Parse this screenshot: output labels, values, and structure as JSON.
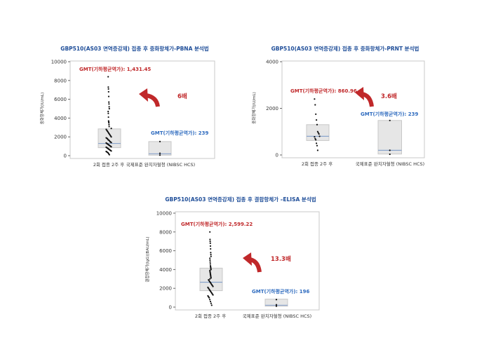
{
  "colors": {
    "title": "#1f4e99",
    "gmt_red": "#c0282a",
    "gmt_blue": "#2e6bbf",
    "box_fill": "#e6e6e6",
    "box_stroke": "#c8c8c8",
    "median": "#8aa4cc",
    "arrow": "#c0282a"
  },
  "chart_data": [
    {
      "type": "box",
      "title": "GBP510(AS03 면역증강제) 접종 후 중화항체가-PBNA 분석법",
      "ylabel": "중화항체가(IU/mL)",
      "ylim": [
        0,
        10000
      ],
      "yticks": [
        0,
        2000,
        4000,
        6000,
        8000,
        10000
      ],
      "categories": [
        "2회 접종 2주 후",
        "국제표준 완치자혈청 (NIBSC HCS)"
      ],
      "boxes": [
        {
          "q1": 850,
          "median": 1300,
          "q3": 2850,
          "points": [
            8400,
            7300,
            7100,
            6800,
            6300,
            5700,
            5500,
            5200,
            5000,
            4700,
            4500,
            4100,
            3700,
            3600,
            3500,
            3300,
            3100,
            2900,
            2800,
            2700,
            2600,
            2500,
            2400,
            2300,
            2200,
            2100,
            2000,
            1900,
            1850,
            1800,
            1700,
            1650,
            1600,
            1500,
            1450,
            1400,
            1350,
            1300,
            1250,
            1200,
            1150,
            1100,
            1050,
            1000,
            950,
            900,
            850,
            800,
            750,
            700,
            650,
            600,
            550,
            500,
            450,
            400,
            350,
            300,
            200,
            100
          ]
        },
        {
          "q1": 50,
          "median": 200,
          "q3": 1500,
          "points": [
            1500,
            250,
            60
          ]
        }
      ],
      "annotations": [
        {
          "text": "GMT(기하평균역가): 1,431.45",
          "color": "red"
        },
        {
          "text": "GMT(기하평균역가): 239",
          "color": "blue"
        },
        {
          "text": "6배",
          "color": "red"
        }
      ]
    },
    {
      "type": "box",
      "title": "GBP510(AS03 면역증강제) 접종 후 중화항체가-PRNT 분석법",
      "ylabel": "중화항체가(IU/mL)",
      "ylim": [
        0,
        4000
      ],
      "yticks": [
        0,
        2000,
        4000
      ],
      "categories": [
        "2회 접종 2주 후",
        "국제표준 완치자혈청 (NIBSC HCS)"
      ],
      "boxes": [
        {
          "q1": 620,
          "median": 800,
          "q3": 1300,
          "points": [
            2400,
            2150,
            1750,
            1500,
            1300,
            1000,
            950,
            900,
            800,
            780,
            700,
            650,
            500,
            400,
            200
          ]
        },
        {
          "q1": 40,
          "median": 200,
          "q3": 1480,
          "points": [
            1480,
            200,
            30
          ]
        }
      ],
      "annotations": [
        {
          "text": "GMT(기하평균역가): 860.96",
          "color": "red"
        },
        {
          "text": "GMT(기하평균역가): 239",
          "color": "blue"
        },
        {
          "text": "3.6배",
          "color": "red"
        }
      ]
    },
    {
      "type": "box",
      "title": "GBP510(AS03 면역증강제) 접종 후 결합항체가 –ELISA 분석법",
      "ylabel": "결합항체가(IgG)(BAU/mL)",
      "ylim": [
        0,
        10000
      ],
      "yticks": [
        0,
        2000,
        4000,
        6000,
        8000,
        10000
      ],
      "categories": [
        "2회 접종 2주 후",
        "국제표준 완치자혈청 (NIBSC HCS)"
      ],
      "boxes": [
        {
          "q1": 1750,
          "median": 2650,
          "q3": 4150,
          "points": [
            8000,
            7200,
            7000,
            6800,
            6500,
            6200,
            5800,
            5600,
            5400,
            5200,
            5000,
            4800,
            4600,
            4400,
            4300,
            4200,
            4100,
            4000,
            3900,
            3800,
            3700,
            3600,
            3500,
            3400,
            3300,
            3200,
            3100,
            3000,
            2900,
            2800,
            2700,
            2600,
            2500,
            2400,
            2300,
            2200,
            2100,
            2000,
            1900,
            1800,
            1700,
            1600,
            1500,
            1400,
            1300,
            1200,
            1100,
            1000,
            800,
            600,
            400,
            200
          ]
        },
        {
          "q1": 100,
          "median": 200,
          "q3": 850,
          "points": [
            800,
            250,
            100
          ]
        }
      ],
      "annotations": [
        {
          "text": "GMT(기하평균역가): 2,599.22",
          "color": "red"
        },
        {
          "text": "GMT(기하평균역가): 196",
          "color": "blue"
        },
        {
          "text": "13.3배",
          "color": "red"
        }
      ]
    }
  ]
}
